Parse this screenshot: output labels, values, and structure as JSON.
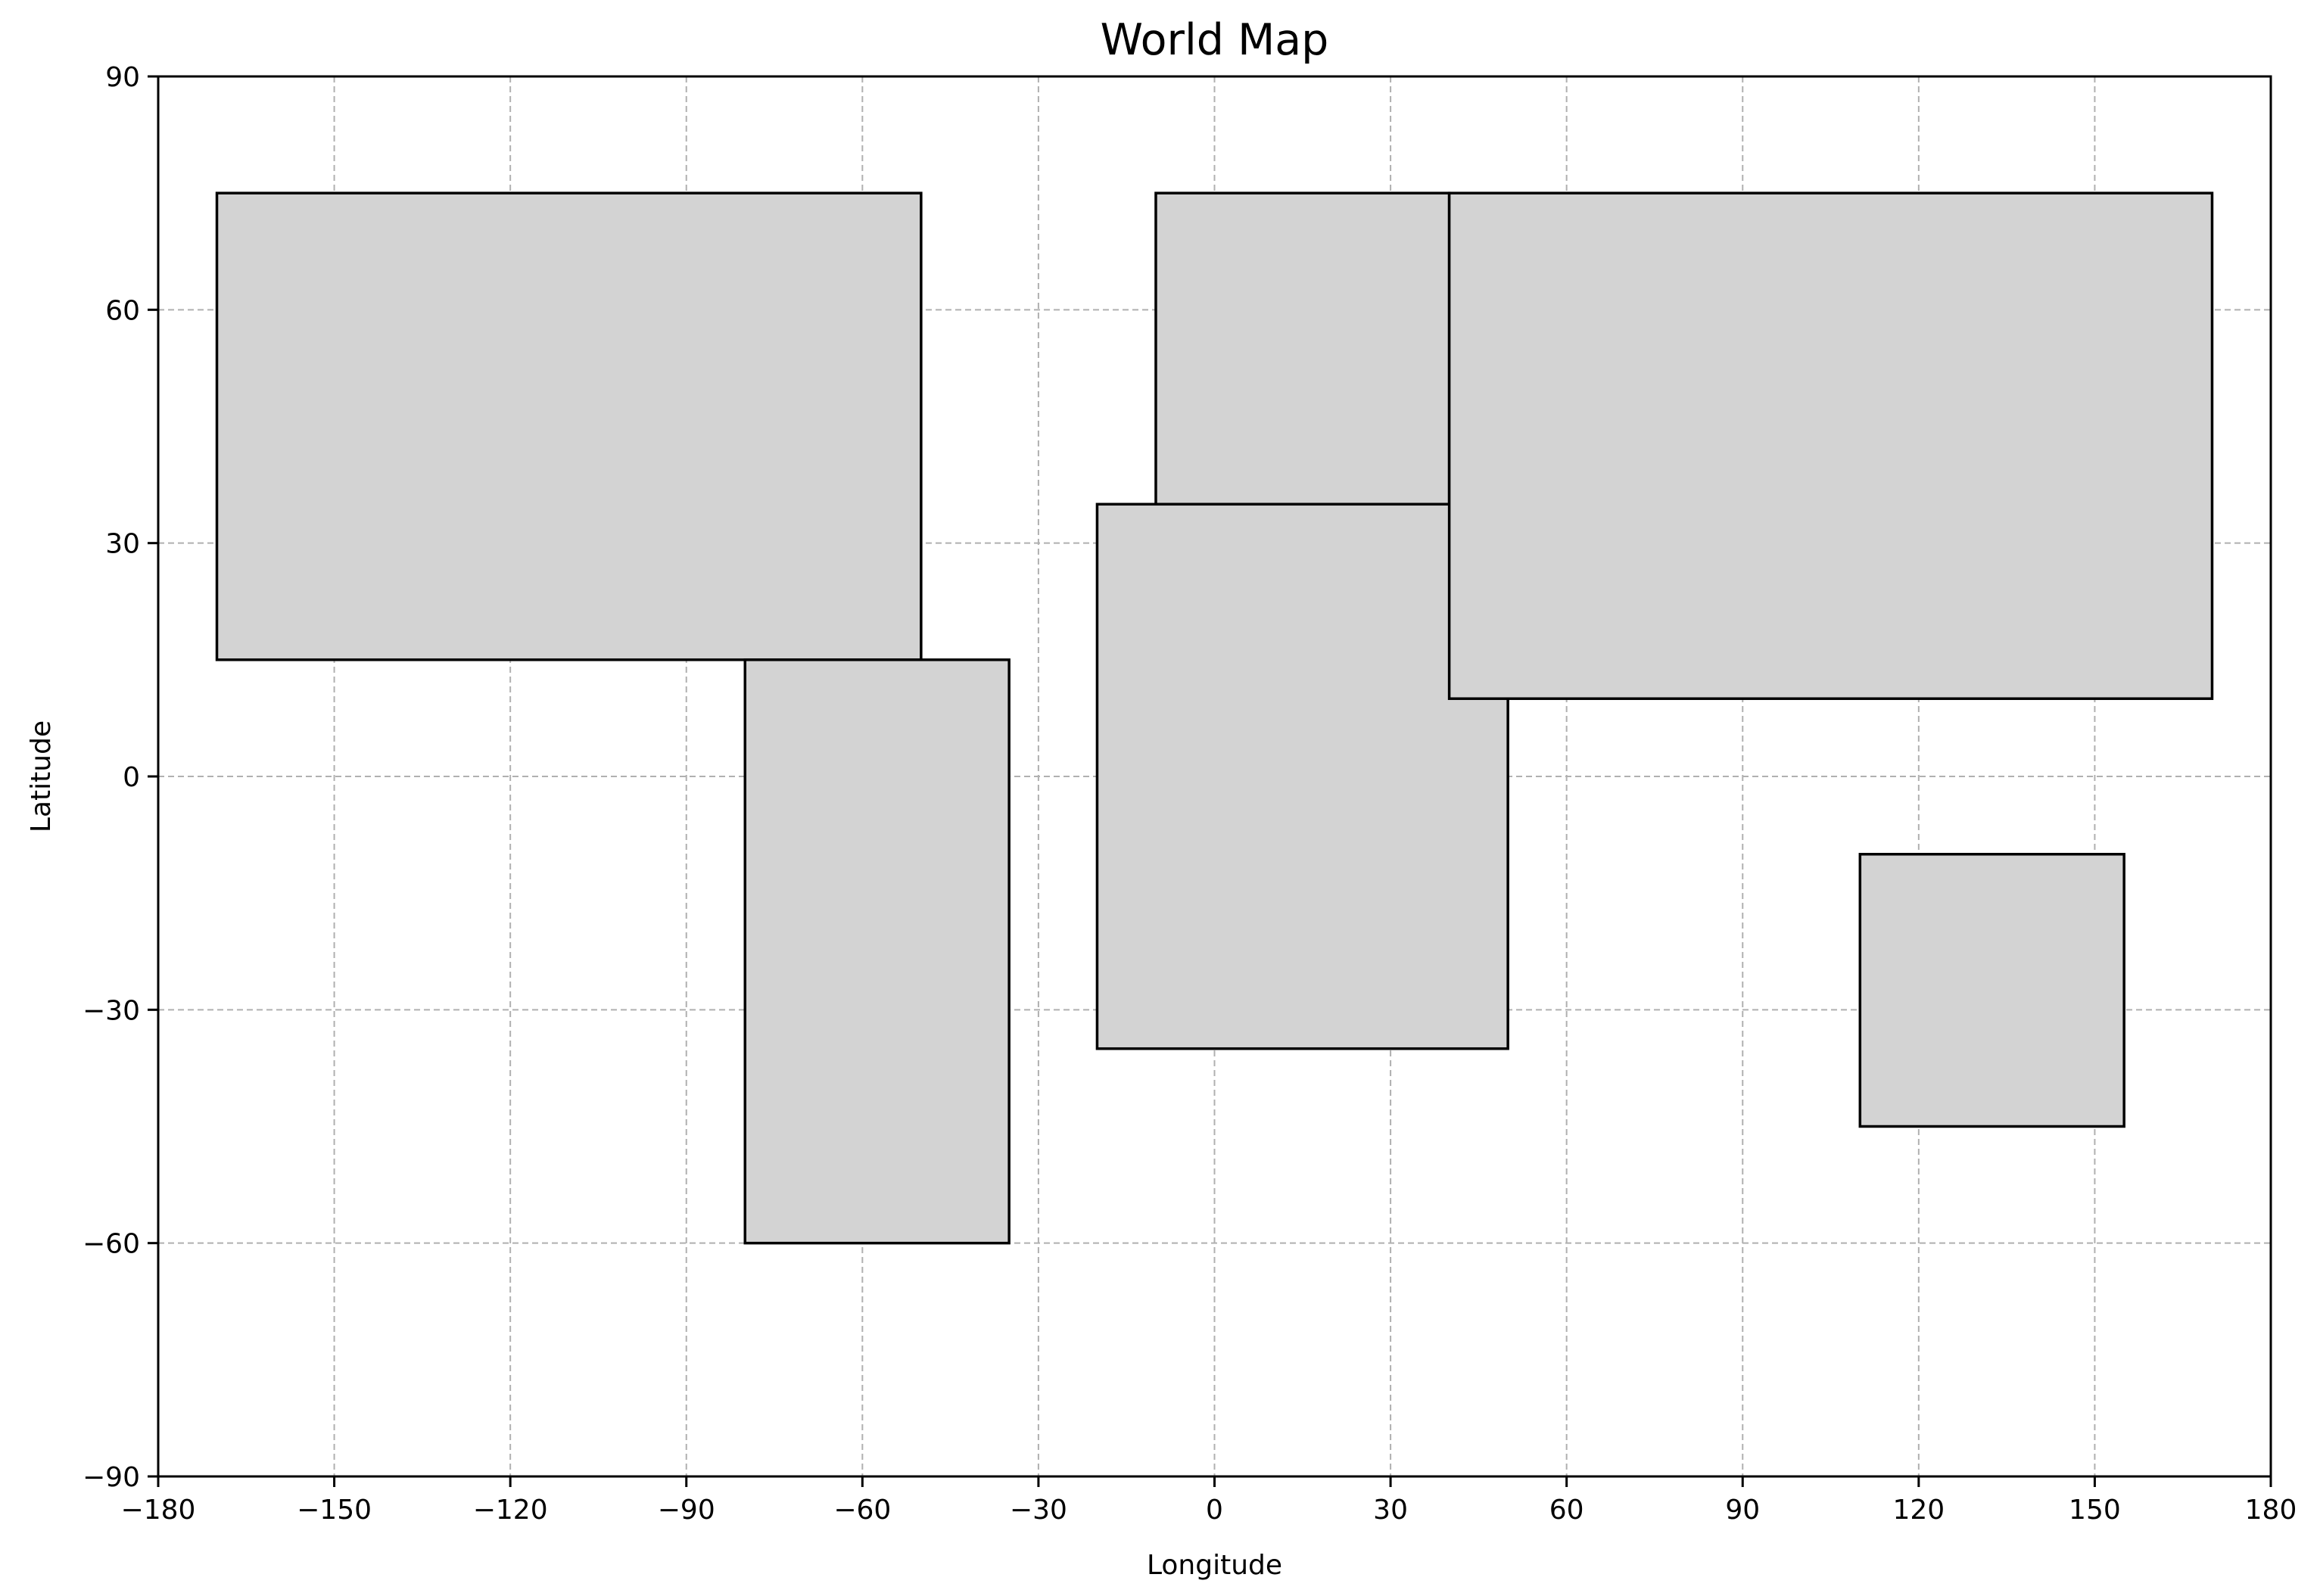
{
  "chart_data": {
    "type": "map",
    "title": "World Map",
    "xlabel": "Longitude",
    "ylabel": "Latitude",
    "xlim": [
      -180,
      180
    ],
    "ylim": [
      -90,
      90
    ],
    "xticks": [
      -180,
      -150,
      -120,
      -90,
      -60,
      -30,
      0,
      30,
      60,
      90,
      120,
      150,
      180
    ],
    "yticks": [
      -90,
      -60,
      -30,
      0,
      30,
      60,
      90
    ],
    "grid": true,
    "region_fill": "#d3d3d3",
    "region_edge": "#000000",
    "regions": [
      {
        "lon": [
          -170,
          -50
        ],
        "lat": [
          15,
          75
        ]
      },
      {
        "lon": [
          -80,
          -35
        ],
        "lat": [
          -60,
          15
        ]
      },
      {
        "lon": [
          -10,
          40
        ],
        "lat": [
          35,
          75
        ]
      },
      {
        "lon": [
          -20,
          50
        ],
        "lat": [
          -35,
          35
        ]
      },
      {
        "lon": [
          40,
          170
        ],
        "lat": [
          10,
          75
        ]
      },
      {
        "lon": [
          110,
          155
        ],
        "lat": [
          -45,
          -10
        ]
      }
    ]
  }
}
